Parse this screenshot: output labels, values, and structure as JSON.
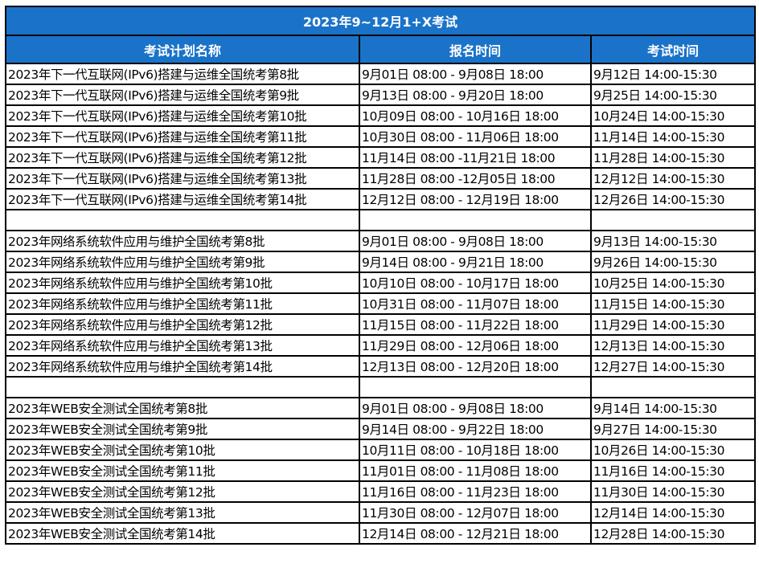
{
  "title": "2023年9~12月1+X考试",
  "headers": [
    "考试计划名称",
    "报名时间",
    "考试时间"
  ],
  "theme": {
    "header_bg": "#1a73c9",
    "header_text": "#ffffff"
  },
  "rows": [
    [
      "2023年下一代互联网(IPv6)搭建与运维全国统考第8批",
      "9月01日 08:00 - 9月08日 18:00",
      "9月12日 14:00-15:30"
    ],
    [
      "2023年下一代互联网(IPv6)搭建与运维全国统考第9批",
      "9月13日 08:00 - 9月20日 18:00",
      "9月25日 14:00-15:30"
    ],
    [
      "2023年下一代互联网(IPv6)搭建与运维全国统考第10批",
      "10月09日 08:00 - 10月16日 18:00",
      "10月24日 14:00-15:30"
    ],
    [
      "2023年下一代互联网(IPv6)搭建与运维全国统考第11批",
      "10月30日 08:00 - 11月06日 18:00",
      "11月14日 14:00-15:30"
    ],
    [
      "2023年下一代互联网(IPv6)搭建与运维全国统考第12批",
      "11月14日 08:00 -11月21日 18:00",
      "11月28日 14:00-15:30"
    ],
    [
      "2023年下一代互联网(IPv6)搭建与运维全国统考第13批",
      "11月28日 08:00 -12月05日 18:00",
      "12月12日 14:00-15:30"
    ],
    [
      "2023年下一代互联网(IPv6)搭建与运维全国统考第14批",
      "12月12日 08:00 - 12月19日 18:00",
      "12月26日 14:00-15:30"
    ],
    [
      "",
      "",
      ""
    ],
    [
      "2023年网络系统软件应用与维护全国统考第8批",
      "9月01日 08:00 - 9月08日 18:00",
      "9月13日 14:00-15:30"
    ],
    [
      "2023年网络系统软件应用与维护全国统考第9批",
      "9月14日 08:00 - 9月21日 18:00",
      "9月26日 14:00-15:30"
    ],
    [
      "2023年网络系统软件应用与维护全国统考第10批",
      "10月10日 08:00 - 10月17日 18:00",
      "10月25日 14:00-15:30"
    ],
    [
      "2023年网络系统软件应用与维护全国统考第11批",
      "10月31日 08:00 - 11月07日 18:00",
      "11月15日 14:00-15:30"
    ],
    [
      "2023年网络系统软件应用与维护全国统考第12批",
      "11月15日 08:00 - 11月22日 18:00",
      "11月29日 14:00-15:30"
    ],
    [
      "2023年网络系统软件应用与维护全国统考第13批",
      "11月29日 08:00 - 12月06日 18:00",
      "12月13日 14:00-15:30"
    ],
    [
      "2023年网络系统软件应用与维护全国统考第14批",
      "12月13日 08:00 - 12月20日 18:00",
      "12月27日 14:00-15:30"
    ],
    [
      "",
      "",
      ""
    ],
    [
      "2023年WEB安全测试全国统考第8批",
      "9月01日 08:00 - 9月08日 18:00",
      "9月14日 14:00-15:30"
    ],
    [
      "2023年WEB安全测试全国统考第9批",
      "9月14日 08:00 - 9月22日 18:00",
      "9月27日 14:00-15:30"
    ],
    [
      "2023年WEB安全测试全国统考第10批",
      "10月11日 08:00 - 10月18日 18:00",
      "10月26日 14:00-15:30"
    ],
    [
      "2023年WEB安全测试全国统考第11批",
      "11月01日 08:00 - 11月08日 18:00",
      "11月16日 14:00-15:30"
    ],
    [
      "2023年WEB安全测试全国统考第12批",
      "11月16日 08:00 - 11月23日 18:00",
      "11月30日 14:00-15:30"
    ],
    [
      "2023年WEB安全测试全国统考第13批",
      "11月30日 08:00 - 12月07日 18:00",
      "12月14日 14:00-15:30"
    ],
    [
      "2023年WEB安全测试全国统考第14批",
      "12月14日 08:00 - 12月21日 18:00",
      "12月28日 14:00-15:30"
    ]
  ]
}
